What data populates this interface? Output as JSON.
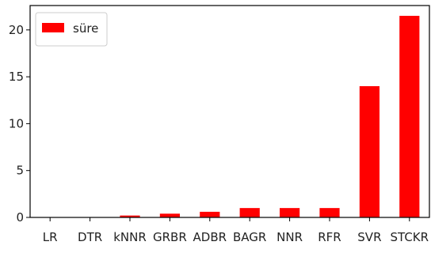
{
  "chart_data": {
    "type": "bar",
    "categories": [
      "LR",
      "DTR",
      "kNNR",
      "GRBR",
      "ADBR",
      "BAGR",
      "NNR",
      "RFR",
      "SVR",
      "STCKR"
    ],
    "series": [
      {
        "name": "süre",
        "values": [
          0.0,
          0.0,
          0.2,
          0.4,
          0.6,
          1.0,
          1.0,
          1.0,
          14.0,
          21.5
        ],
        "color": "#ff0000"
      }
    ],
    "yticks": [
      0,
      5,
      10,
      15,
      20
    ],
    "ylim": [
      0,
      22.6
    ],
    "legend_position": "top-left",
    "grid": false
  }
}
